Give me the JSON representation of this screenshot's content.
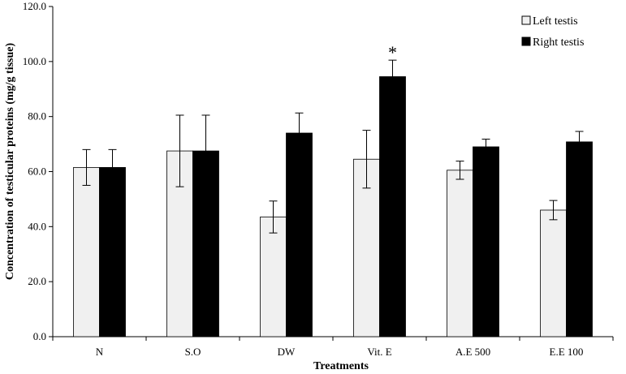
{
  "chart_data": {
    "type": "bar",
    "title": "",
    "xlabel": "Treatments",
    "ylabel": "Concentration of testicular proteins (mg/g tissue)",
    "ylim": [
      0,
      120
    ],
    "yticks": [
      "0.0",
      "20.0",
      "40.0",
      "60.0",
      "80.0",
      "100.0",
      "120.0"
    ],
    "categories": [
      "N",
      "S.O",
      "DW",
      "Vit. E",
      "A.E 500",
      "E.E 100"
    ],
    "series": [
      {
        "name": "Left testis",
        "color": "#f0f0f0",
        "values": [
          61.5,
          67.5,
          43.5,
          64.5,
          60.5,
          46.0
        ],
        "errors": [
          6.5,
          13.0,
          5.8,
          10.5,
          3.3,
          3.5
        ]
      },
      {
        "name": "Right testis",
        "color": "#000000",
        "values": [
          61.5,
          67.5,
          74.0,
          94.5,
          69.0,
          70.8
        ],
        "errors": [
          6.5,
          13.0,
          7.3,
          6.0,
          2.8,
          3.8
        ]
      }
    ],
    "annotations": [
      {
        "text": "*",
        "category": "Vit. E",
        "series": "Right testis"
      }
    ],
    "grid": false,
    "legend_position": "top-right"
  }
}
